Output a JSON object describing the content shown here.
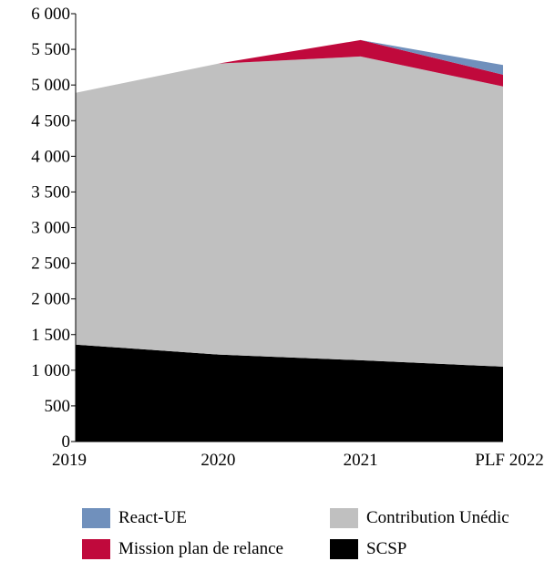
{
  "chart_data": {
    "type": "area",
    "stacked": true,
    "categories": [
      "2019",
      "2020",
      "2021",
      "PLF 2022"
    ],
    "series": [
      {
        "name": "SCSP",
        "color": "#000000",
        "values": [
          1360,
          1220,
          1140,
          1050
        ]
      },
      {
        "name": "Contribution Unédic",
        "color": "#c0c0c0",
        "values": [
          3530,
          4080,
          4260,
          3930
        ]
      },
      {
        "name": "Mission plan de relance",
        "color": "#c0093c",
        "values": [
          0,
          0,
          230,
          165
        ]
      },
      {
        "name": "React-UE",
        "color": "#7090bc",
        "values": [
          0,
          0,
          0,
          135
        ]
      }
    ],
    "ylim": [
      0,
      6000
    ],
    "yticks": [
      "0",
      "500",
      "1 000",
      "1 500",
      "2 000",
      "2 500",
      "3 000",
      "3 500",
      "4 000",
      "4 500",
      "5 000",
      "5 500",
      "6 000"
    ],
    "grid": false,
    "legend_position": "bottom"
  }
}
